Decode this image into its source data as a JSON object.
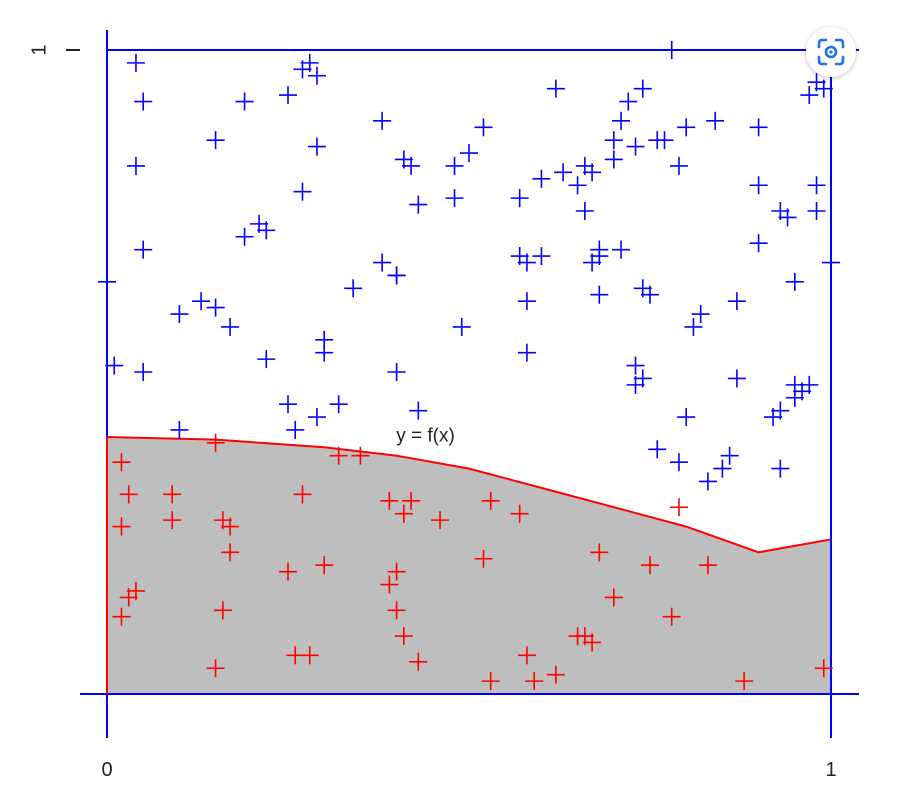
{
  "chart_data": {
    "type": "scatter",
    "title": "",
    "xlabel": "",
    "ylabel": "",
    "xlim": [
      0,
      1
    ],
    "ylim": [
      0,
      1
    ],
    "x_ticks": [
      {
        "value": 0,
        "label": "0"
      },
      {
        "value": 1,
        "label": "1"
      }
    ],
    "y_ticks": [
      {
        "value": 1,
        "label": "1"
      }
    ],
    "grid": false,
    "curve": {
      "label": "y = f(x)",
      "color": "#ff0000",
      "fill_color": "#bebebe",
      "points": [
        [
          0,
          0.399
        ],
        [
          0.15,
          0.395
        ],
        [
          0.3,
          0.383
        ],
        [
          0.4,
          0.37
        ],
        [
          0.5,
          0.35
        ],
        [
          0.6,
          0.32
        ],
        [
          0.7,
          0.29
        ],
        [
          0.8,
          0.26
        ],
        [
          0.9,
          0.22
        ],
        [
          1.0,
          0.24
        ]
      ]
    },
    "series": [
      {
        "color": "#0000ff",
        "points": [
          [
            0.04,
            0.98
          ],
          [
            0.05,
            0.92
          ],
          [
            0.04,
            0.82
          ],
          [
            0.05,
            0.69
          ],
          [
            0.0,
            0.64
          ],
          [
            0.01,
            0.51
          ],
          [
            0.05,
            0.5
          ],
          [
            0.1,
            0.41
          ],
          [
            0.1,
            0.59
          ],
          [
            0.13,
            0.61
          ],
          [
            0.15,
            0.6
          ],
          [
            0.17,
            0.57
          ],
          [
            0.15,
            0.86
          ],
          [
            0.19,
            0.92
          ],
          [
            0.19,
            0.71
          ],
          [
            0.21,
            0.73
          ],
          [
            0.22,
            0.72
          ],
          [
            0.22,
            0.52
          ],
          [
            0.25,
            0.45
          ],
          [
            0.26,
            0.41
          ],
          [
            0.25,
            0.93
          ],
          [
            0.27,
            0.97
          ],
          [
            0.28,
            0.98
          ],
          [
            0.29,
            0.96
          ],
          [
            0.29,
            0.85
          ],
          [
            0.27,
            0.78
          ],
          [
            0.3,
            0.55
          ],
          [
            0.3,
            0.53
          ],
          [
            0.29,
            0.43
          ],
          [
            0.32,
            0.45
          ],
          [
            0.34,
            0.63
          ],
          [
            0.38,
            0.89
          ],
          [
            0.38,
            0.67
          ],
          [
            0.4,
            0.65
          ],
          [
            0.4,
            0.65
          ],
          [
            0.4,
            0.5
          ],
          [
            0.41,
            0.83
          ],
          [
            0.42,
            0.82
          ],
          [
            0.43,
            0.76
          ],
          [
            0.43,
            0.44
          ],
          [
            0.48,
            0.82
          ],
          [
            0.5,
            0.84
          ],
          [
            0.52,
            0.88
          ],
          [
            0.48,
            0.77
          ],
          [
            0.49,
            0.57
          ],
          [
            0.57,
            0.77
          ],
          [
            0.57,
            0.68
          ],
          [
            0.58,
            0.67
          ],
          [
            0.58,
            0.61
          ],
          [
            0.58,
            0.53
          ],
          [
            0.6,
            0.8
          ],
          [
            0.6,
            0.68
          ],
          [
            0.62,
            0.94
          ],
          [
            0.63,
            0.81
          ],
          [
            0.65,
            0.79
          ],
          [
            0.66,
            0.82
          ],
          [
            0.66,
            0.75
          ],
          [
            0.67,
            0.81
          ],
          [
            0.68,
            0.69
          ],
          [
            0.67,
            0.67
          ],
          [
            0.68,
            0.62
          ],
          [
            0.68,
            0.68
          ],
          [
            0.7,
            0.86
          ],
          [
            0.71,
            0.69
          ],
          [
            0.7,
            0.83
          ],
          [
            0.72,
            0.92
          ],
          [
            0.71,
            0.89
          ],
          [
            0.74,
            0.94
          ],
          [
            0.73,
            0.85
          ],
          [
            0.76,
            0.86
          ],
          [
            0.74,
            0.63
          ],
          [
            0.75,
            0.62
          ],
          [
            0.73,
            0.51
          ],
          [
            0.74,
            0.49
          ],
          [
            0.77,
            0.86
          ],
          [
            0.79,
            0.82
          ],
          [
            0.8,
            0.88
          ],
          [
            0.82,
            0.59
          ],
          [
            0.81,
            0.57
          ],
          [
            0.8,
            0.43
          ],
          [
            0.84,
            0.89
          ],
          [
            0.87,
            0.61
          ],
          [
            0.87,
            0.49
          ],
          [
            0.9,
            0.88
          ],
          [
            0.9,
            0.79
          ],
          [
            0.9,
            0.7
          ],
          [
            0.93,
            0.75
          ],
          [
            0.94,
            0.74
          ],
          [
            0.95,
            0.64
          ],
          [
            0.95,
            0.48
          ],
          [
            0.95,
            0.46
          ],
          [
            0.97,
            0.48
          ],
          [
            0.98,
            0.79
          ],
          [
            0.98,
            0.75
          ],
          [
            0.97,
            0.93
          ],
          [
            0.98,
            0.95
          ],
          [
            0.99,
            0.94
          ],
          [
            1.0,
            0.67
          ],
          [
            0.78,
            1.0
          ],
          [
            0.79,
            0.36
          ],
          [
            0.83,
            0.33
          ],
          [
            0.85,
            0.35
          ],
          [
            0.86,
            0.37
          ],
          [
            0.93,
            0.44
          ],
          [
            0.92,
            0.43
          ],
          [
            0.96,
            0.47
          ],
          [
            0.93,
            0.35
          ],
          [
            0.73,
            0.48
          ],
          [
            0.76,
            0.38
          ]
        ]
      },
      {
        "color": "#ff0000",
        "points": [
          [
            0.02,
            0.36
          ],
          [
            0.03,
            0.31
          ],
          [
            0.02,
            0.26
          ],
          [
            0.09,
            0.31
          ],
          [
            0.09,
            0.27
          ],
          [
            0.15,
            0.39
          ],
          [
            0.16,
            0.27
          ],
          [
            0.17,
            0.22
          ],
          [
            0.17,
            0.26
          ],
          [
            0.27,
            0.31
          ],
          [
            0.32,
            0.37
          ],
          [
            0.35,
            0.37
          ],
          [
            0.3,
            0.2
          ],
          [
            0.25,
            0.19
          ],
          [
            0.03,
            0.15
          ],
          [
            0.04,
            0.16
          ],
          [
            0.02,
            0.12
          ],
          [
            0.16,
            0.13
          ],
          [
            0.26,
            0.06
          ],
          [
            0.28,
            0.06
          ],
          [
            0.15,
            0.04
          ],
          [
            0.39,
            0.3
          ],
          [
            0.42,
            0.3
          ],
          [
            0.41,
            0.28
          ],
          [
            0.46,
            0.27
          ],
          [
            0.53,
            0.3
          ],
          [
            0.57,
            0.28
          ],
          [
            0.52,
            0.21
          ],
          [
            0.4,
            0.19
          ],
          [
            0.39,
            0.17
          ],
          [
            0.4,
            0.13
          ],
          [
            0.41,
            0.09
          ],
          [
            0.43,
            0.05
          ],
          [
            0.53,
            0.02
          ],
          [
            0.59,
            0.02
          ],
          [
            0.58,
            0.06
          ],
          [
            0.62,
            0.03
          ],
          [
            0.65,
            0.09
          ],
          [
            0.67,
            0.08
          ],
          [
            0.66,
            0.09
          ],
          [
            0.68,
            0.22
          ],
          [
            0.7,
            0.15
          ],
          [
            0.75,
            0.2
          ],
          [
            0.78,
            0.12
          ],
          [
            0.79,
            0.29
          ],
          [
            0.83,
            0.2
          ],
          [
            0.88,
            0.02
          ],
          [
            0.99,
            0.04
          ]
        ]
      }
    ]
  },
  "lens_button": {
    "icon": "google-lens-icon",
    "color": "#1a73e8"
  }
}
